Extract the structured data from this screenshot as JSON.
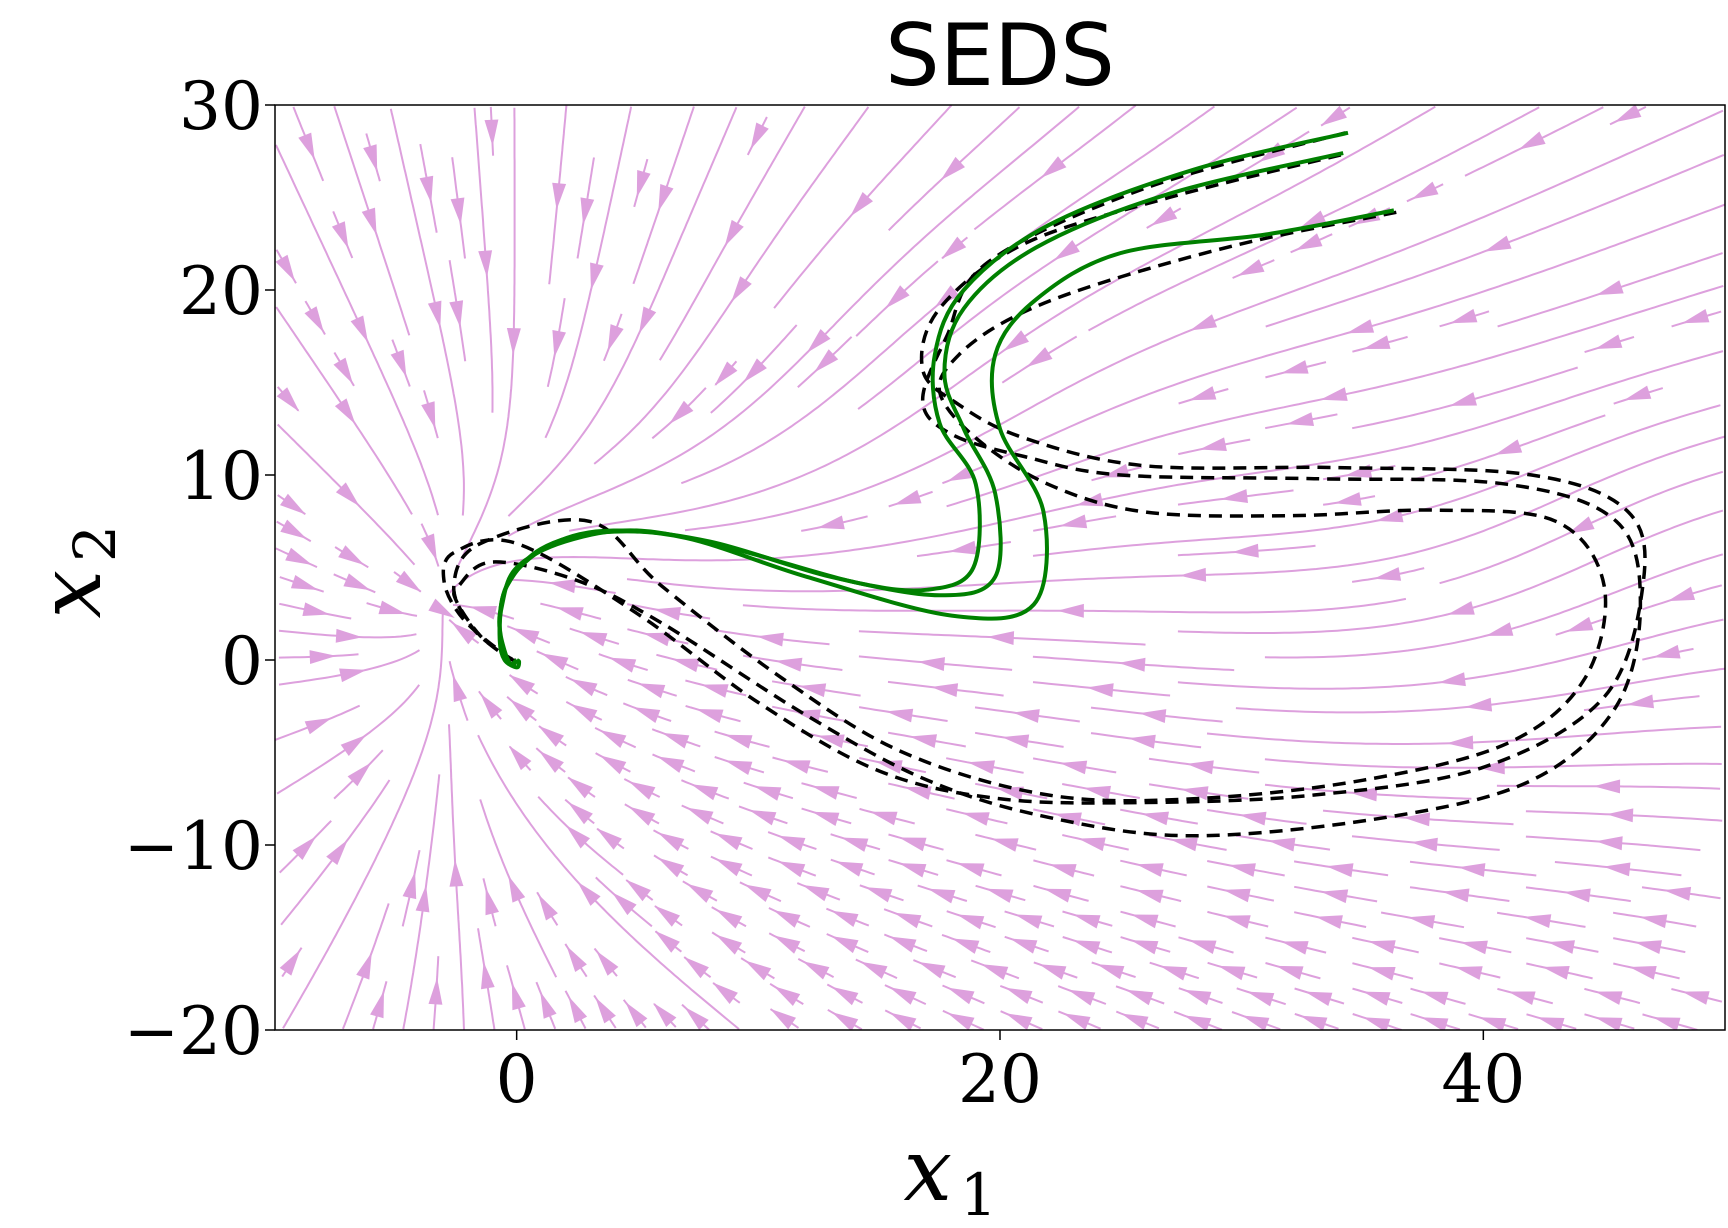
{
  "chart_data": {
    "type": "line",
    "title": "SEDS",
    "xlabel": {
      "base": "x",
      "sub": "1"
    },
    "ylabel": {
      "base": "x",
      "sub": "2"
    },
    "xlim": [
      -10,
      50
    ],
    "ylim": [
      -20,
      30
    ],
    "xticks": [
      0,
      20,
      40
    ],
    "yticks": [
      -20,
      -10,
      0,
      10,
      20,
      30
    ],
    "xtick_labels": [
      "0",
      "20",
      "40"
    ],
    "ytick_labels": [
      "−20",
      "−10",
      "0",
      "10",
      "20",
      "30"
    ],
    "grid": false,
    "colors": {
      "streamlines": "#dda0dd",
      "demonstrations": "#000000",
      "reproductions": "#008000"
    },
    "attractor": [
      0,
      0
    ],
    "demonstrations": [
      {
        "style": "dashed",
        "points": [
          [
            34.3,
            28.5
          ],
          [
            26,
            25.5
          ],
          [
            19.5,
            21.5
          ],
          [
            17.8,
            17.5
          ],
          [
            16.8,
            14
          ],
          [
            18,
            12.2
          ],
          [
            21,
            11
          ],
          [
            25,
            10
          ],
          [
            33,
            9.8
          ],
          [
            41,
            9.5
          ],
          [
            45.5,
            7.5
          ],
          [
            46.5,
            3
          ],
          [
            45.5,
            -2.5
          ],
          [
            42,
            -6.5
          ],
          [
            36,
            -8.5
          ],
          [
            28,
            -9.5
          ],
          [
            22,
            -8.5
          ],
          [
            17,
            -6.5
          ],
          [
            12,
            -3
          ],
          [
            6,
            2
          ],
          [
            2.5,
            4.3
          ],
          [
            -1,
            5.3
          ],
          [
            -2.4,
            4
          ],
          [
            -2.5,
            3.2
          ],
          [
            -1.5,
            1.3
          ],
          [
            -0.3,
            0.1
          ],
          [
            0,
            0
          ]
        ]
      },
      {
        "style": "dashed",
        "points": [
          [
            34.1,
            27.3
          ],
          [
            27,
            25
          ],
          [
            21,
            22.5
          ],
          [
            17.5,
            19
          ],
          [
            16.8,
            15.7
          ],
          [
            18.3,
            13.8
          ],
          [
            21,
            12
          ],
          [
            26,
            10.5
          ],
          [
            34,
            10.4
          ],
          [
            42,
            10
          ],
          [
            46,
            8
          ],
          [
            46.6,
            4
          ],
          [
            45,
            -2
          ],
          [
            40,
            -5.8
          ],
          [
            33,
            -7.3
          ],
          [
            26,
            -7.7
          ],
          [
            20,
            -7.5
          ],
          [
            15,
            -6
          ],
          [
            10,
            -2.3
          ],
          [
            5,
            2.5
          ],
          [
            0,
            6.3
          ],
          [
            -2.6,
            5.8
          ],
          [
            -3,
            4.2
          ],
          [
            -2.2,
            2.2
          ],
          [
            -0.5,
            0.3
          ],
          [
            0,
            0
          ]
        ]
      },
      {
        "style": "dashed",
        "points": [
          [
            36.4,
            24.2
          ],
          [
            30,
            22.5
          ],
          [
            24,
            20.3
          ],
          [
            20.5,
            18.5
          ],
          [
            18.3,
            16.5
          ],
          [
            17.5,
            14.5
          ],
          [
            19,
            12
          ],
          [
            22,
            9.5
          ],
          [
            26,
            8
          ],
          [
            32,
            7.8
          ],
          [
            38,
            8.1
          ],
          [
            43,
            7.5
          ],
          [
            45,
            4
          ],
          [
            44.2,
            -1
          ],
          [
            41,
            -4.5
          ],
          [
            35,
            -6.5
          ],
          [
            28,
            -7.5
          ],
          [
            22,
            -7.3
          ],
          [
            16,
            -5
          ],
          [
            11,
            -1
          ],
          [
            6,
            4
          ],
          [
            3,
            7.5
          ],
          [
            -1.5,
            6.3
          ],
          [
            -2.6,
            4
          ],
          [
            -1.8,
            1.7
          ],
          [
            -0.4,
            0.2
          ],
          [
            0,
            0
          ]
        ]
      }
    ],
    "reproductions": [
      {
        "style": "solid",
        "points": [
          [
            34.4,
            28.5
          ],
          [
            28,
            26.5
          ],
          [
            22,
            23.5
          ],
          [
            18.5,
            20
          ],
          [
            17.3,
            16.5
          ],
          [
            17.5,
            12.8
          ],
          [
            19,
            9.5
          ],
          [
            18.9,
            5
          ],
          [
            17,
            3.8
          ],
          [
            14,
            4.2
          ],
          [
            9,
            6
          ],
          [
            5,
            7
          ],
          [
            2,
            6.4
          ],
          [
            0,
            5
          ],
          [
            -0.6,
            3
          ],
          [
            -0.7,
            1
          ],
          [
            -0.5,
            0
          ],
          [
            0,
            -0.4
          ],
          [
            0.1,
            -0.1
          ],
          [
            0,
            0
          ]
        ]
      },
      {
        "style": "solid",
        "points": [
          [
            34.2,
            27.4
          ],
          [
            27,
            25.2
          ],
          [
            21.5,
            22.3
          ],
          [
            18.5,
            19
          ],
          [
            17.7,
            15.5
          ],
          [
            18.5,
            12.5
          ],
          [
            19.8,
            9
          ],
          [
            19.8,
            4.5
          ],
          [
            17.5,
            3.5
          ],
          [
            13,
            4.5
          ],
          [
            8,
            6.4
          ],
          [
            4,
            7
          ],
          [
            1.5,
            6.3
          ],
          [
            -0.2,
            4.5
          ],
          [
            -0.7,
            2.5
          ],
          [
            -0.6,
            0.8
          ],
          [
            -0.3,
            -0.2
          ],
          [
            0,
            0
          ]
        ]
      },
      {
        "style": "solid",
        "points": [
          [
            36.3,
            24.3
          ],
          [
            31,
            23
          ],
          [
            25,
            22
          ],
          [
            21.5,
            19.5
          ],
          [
            19.8,
            16.5
          ],
          [
            20,
            12.5
          ],
          [
            21.8,
            8
          ],
          [
            21.4,
            3
          ],
          [
            18,
            2.4
          ],
          [
            12,
            4.5
          ],
          [
            7,
            6.6
          ],
          [
            3.5,
            6.9
          ],
          [
            1,
            6
          ],
          [
            -0.4,
            4
          ],
          [
            -0.7,
            2
          ],
          [
            -0.5,
            0.5
          ],
          [
            -0.2,
            -0.3
          ],
          [
            0,
            0
          ]
        ]
      }
    ]
  }
}
